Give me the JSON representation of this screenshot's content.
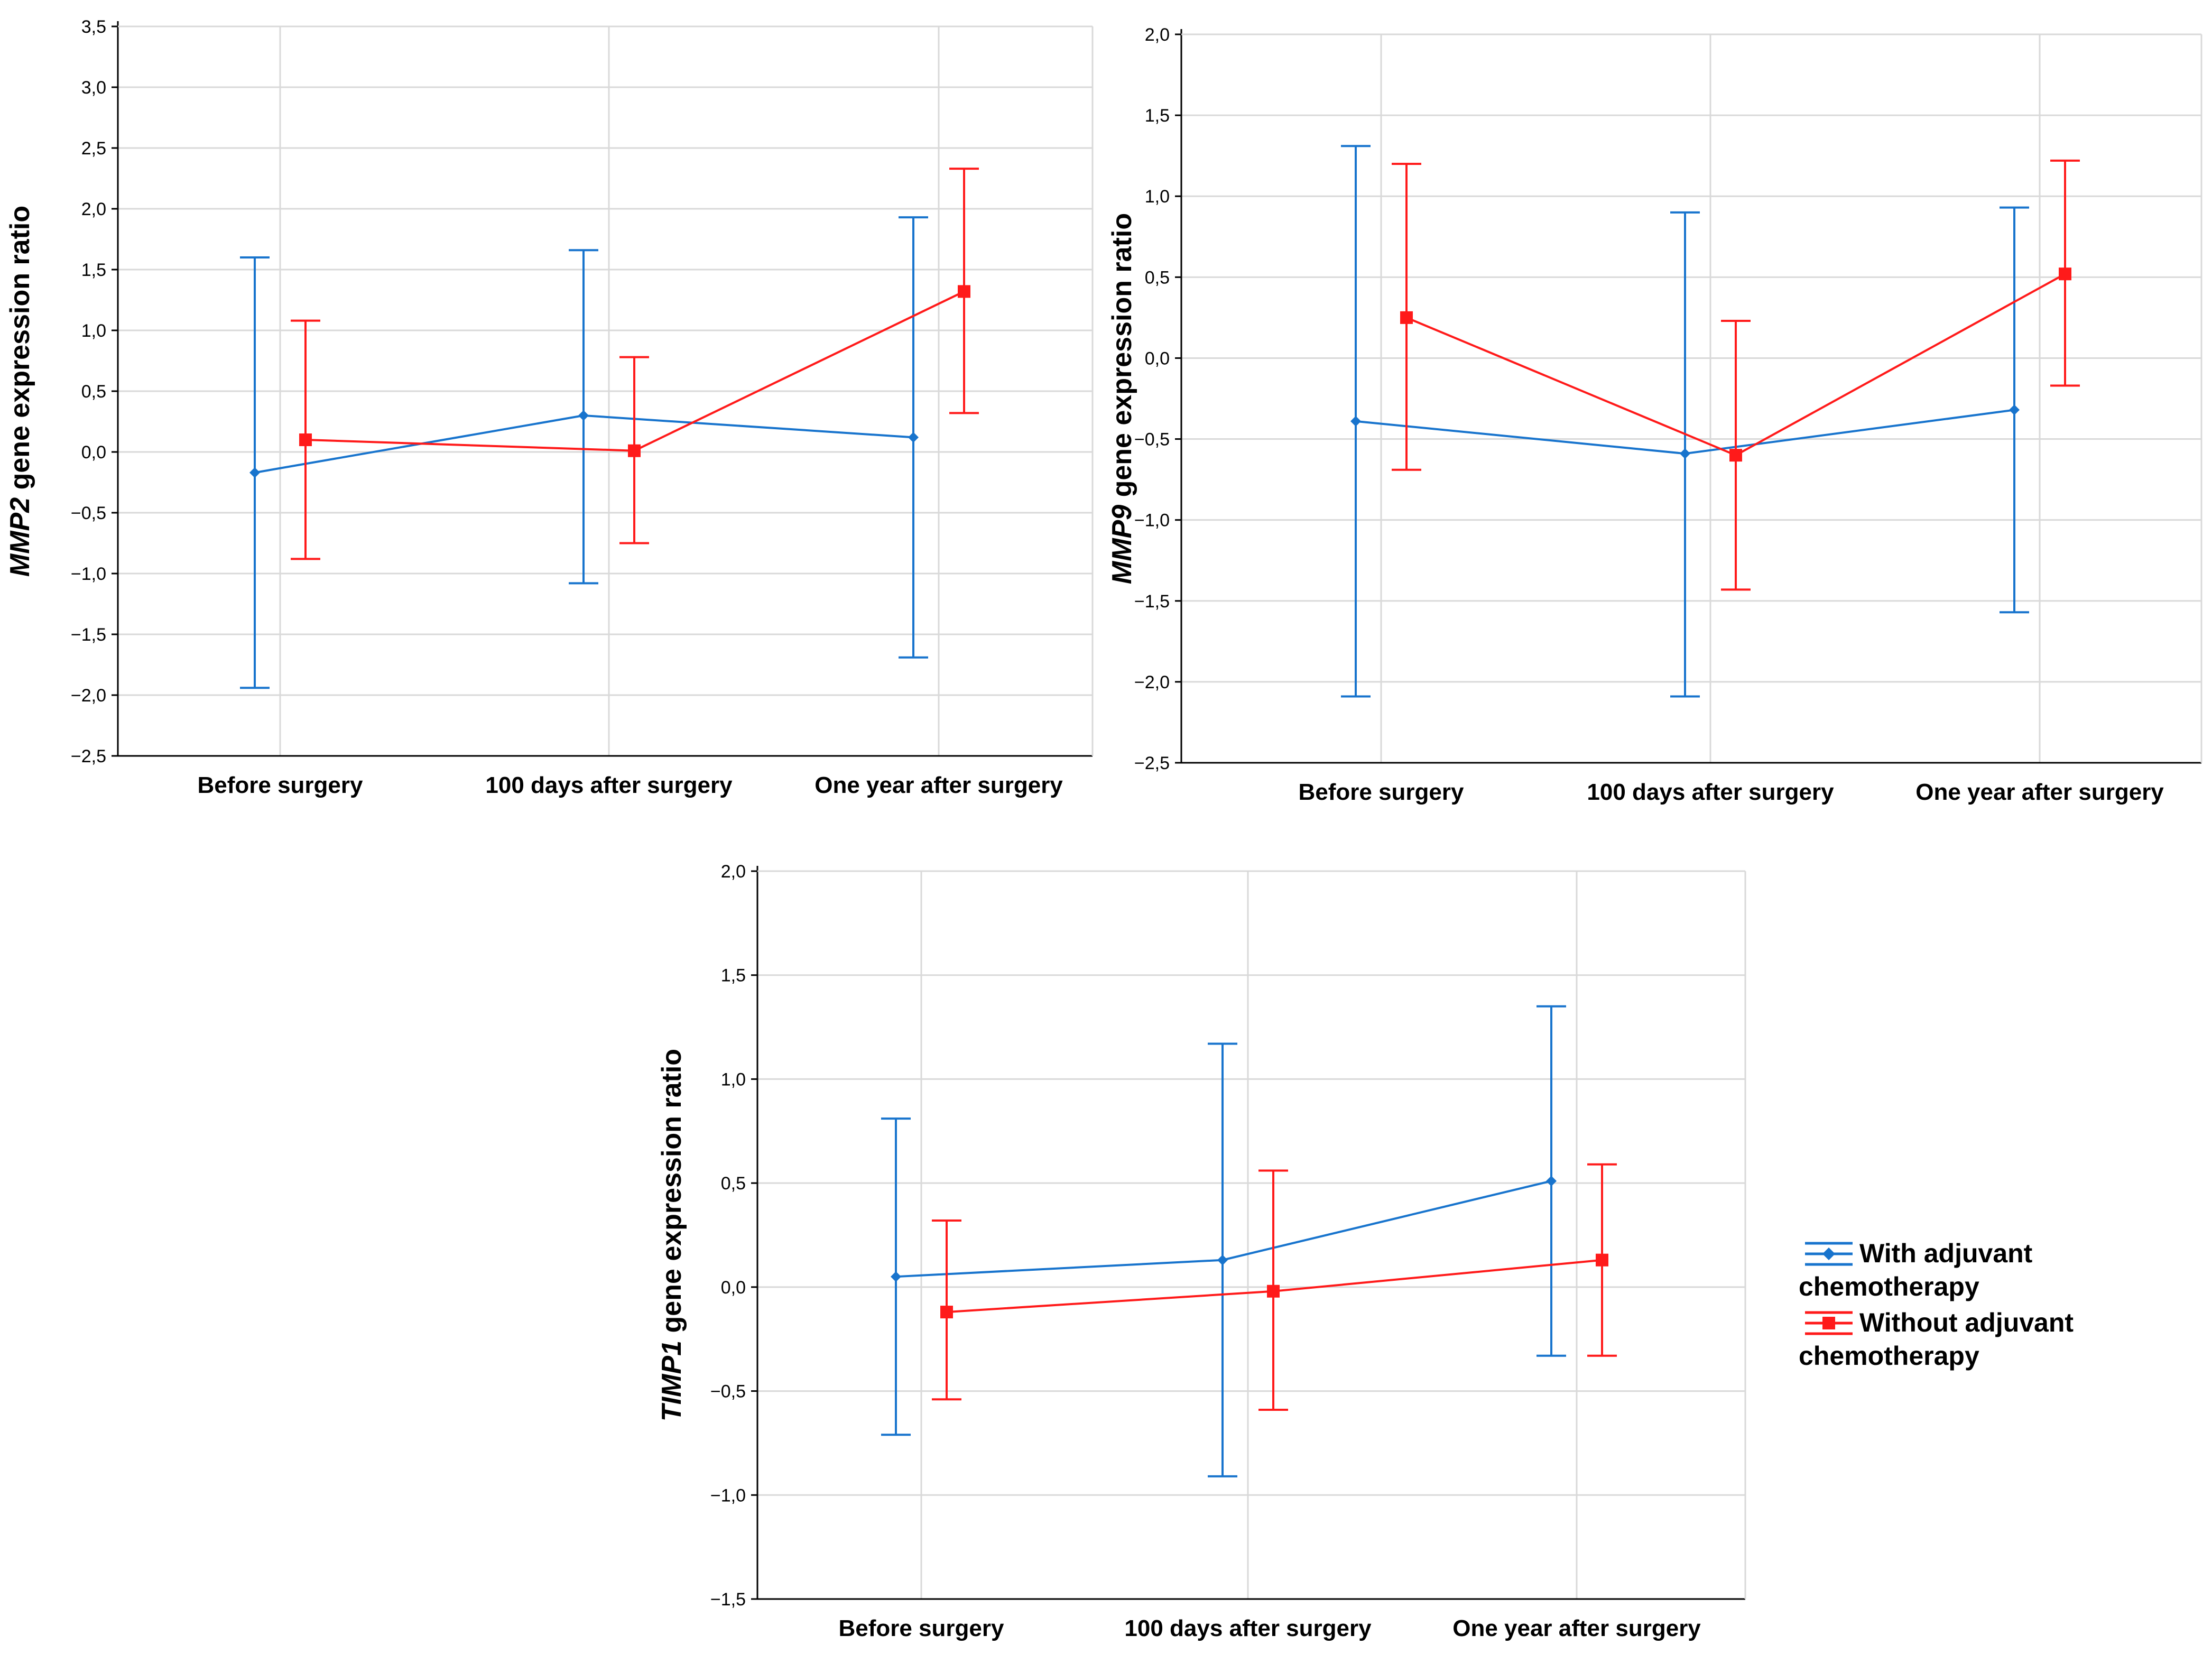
{
  "colors": {
    "with": "#1874CD",
    "without": "#FF1A1A",
    "grid": "#D9D9D9",
    "axis": "#000000"
  },
  "legend": {
    "series": [
      {
        "line1": "With adjuvant",
        "line2": "chemotherapy",
        "marker": "diamond"
      },
      {
        "line1": "Without adjuvant",
        "line2": "chemotherapy",
        "marker": "square"
      }
    ]
  },
  "chart_data": [
    {
      "type": "line",
      "id": "mmp2",
      "ylabel_gene": "MMP2",
      "ylabel_rest": " gene expression ratio",
      "categories": [
        "Before surgery",
        "100 days after surgery",
        "One year after surgery"
      ],
      "yticks": [
        "3,5",
        "3,0",
        "2,5",
        "2,0",
        "1,5",
        "1,0",
        "0,5",
        "0,0",
        "−0,5",
        "−1,0",
        "−1,5",
        "−2,0",
        "−2,5"
      ],
      "ylim": [
        -2.5,
        3.5
      ],
      "ystep": 0.5,
      "series": [
        {
          "name": "With adjuvant chemotherapy",
          "values": [
            -0.17,
            0.3,
            0.12
          ],
          "lower": [
            -1.94,
            -1.08,
            -1.69
          ],
          "upper": [
            1.6,
            1.66,
            1.93
          ]
        },
        {
          "name": "Without adjuvant chemotherapy",
          "values": [
            0.1,
            0.01,
            1.32
          ],
          "lower": [
            -0.88,
            -0.75,
            0.32
          ],
          "upper": [
            1.08,
            0.78,
            2.33
          ]
        }
      ]
    },
    {
      "type": "line",
      "id": "mmp9",
      "ylabel_gene": "MMP9",
      "ylabel_rest": " gene expression ratio",
      "categories": [
        "Before surgery",
        "100 days after surgery",
        "One year after surgery"
      ],
      "yticks": [
        "2,0",
        "1,5",
        "1,0",
        "0,5",
        "0,0",
        "−0,5",
        "−1,0",
        "−1,5",
        "−2,0",
        "−2,5"
      ],
      "ylim": [
        -2.5,
        2.0
      ],
      "ystep": 0.5,
      "series": [
        {
          "name": "With adjuvant chemotherapy",
          "values": [
            -0.39,
            -0.59,
            -0.32
          ],
          "lower": [
            -2.09,
            -2.09,
            -1.57
          ],
          "upper": [
            1.31,
            0.9,
            0.93
          ]
        },
        {
          "name": "Without adjuvant chemotherapy",
          "values": [
            0.25,
            -0.6,
            0.52
          ],
          "lower": [
            -0.69,
            -1.43,
            -0.17
          ],
          "upper": [
            1.2,
            0.23,
            1.22
          ]
        }
      ]
    },
    {
      "type": "line",
      "id": "timp1",
      "ylabel_gene": "TIMP1",
      "ylabel_rest": " gene expression ratio",
      "categories": [
        "Before surgery",
        "100 days after surgery",
        "One year after surgery"
      ],
      "yticks": [
        "2,0",
        "1,5",
        "1,0",
        "0,5",
        "0,0",
        "−0,5",
        "−1,0",
        "−1,5"
      ],
      "ylim": [
        -1.5,
        2.0
      ],
      "ystep": 0.5,
      "series": [
        {
          "name": "With adjuvant chemotherapy",
          "values": [
            0.05,
            0.13,
            0.51
          ],
          "lower": [
            -0.71,
            -0.91,
            -0.33
          ],
          "upper": [
            0.81,
            1.17,
            1.35
          ]
        },
        {
          "name": "Without adjuvant chemotherapy",
          "values": [
            -0.12,
            -0.02,
            0.13
          ],
          "lower": [
            -0.54,
            -0.59,
            -0.33
          ],
          "upper": [
            0.32,
            0.56,
            0.59
          ]
        }
      ]
    }
  ]
}
